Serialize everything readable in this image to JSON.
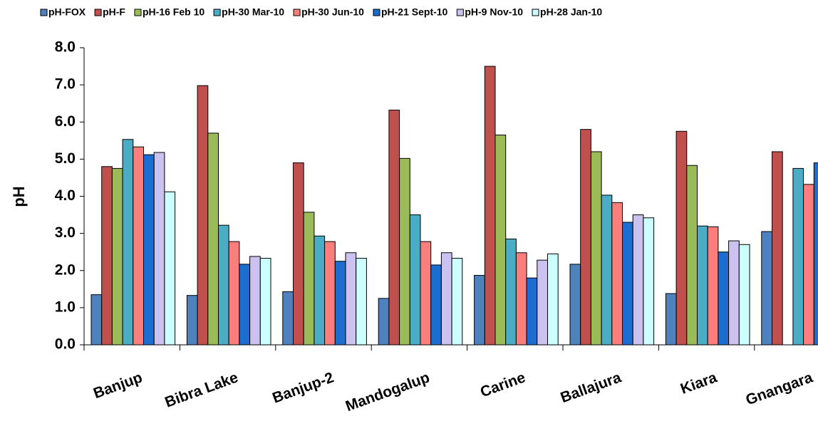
{
  "chart_data": {
    "type": "bar",
    "y_label": "pH",
    "categories": [
      "Banjup",
      "Bibra Lake",
      "Banjup-2",
      "Mandogalup",
      "Carine",
      "Ballajura",
      "Kiara",
      "Gnangara"
    ],
    "series": [
      {
        "name": "pH-FOX",
        "color": "#4f81bd",
        "values": [
          1.35,
          1.33,
          1.43,
          1.25,
          1.87,
          2.17,
          1.38,
          3.05
        ]
      },
      {
        "name": "pH-F",
        "color": "#c0504d",
        "values": [
          4.8,
          6.98,
          4.9,
          6.32,
          7.5,
          5.8,
          5.75,
          5.2
        ]
      },
      {
        "name": "pH-16 Feb 10",
        "color": "#9bbb59",
        "values": [
          4.75,
          5.7,
          3.57,
          5.02,
          5.65,
          5.2,
          4.83,
          null
        ]
      },
      {
        "name": "pH-30 Mar-10",
        "color": "#4bacc6",
        "values": [
          5.53,
          3.22,
          2.93,
          3.5,
          2.85,
          4.03,
          3.2,
          4.75
        ]
      },
      {
        "name": "pH-30 Jun-10",
        "color": "#fa7f7c",
        "values": [
          5.33,
          2.78,
          2.78,
          2.78,
          2.48,
          3.83,
          3.18,
          4.32
        ]
      },
      {
        "name": "pH-21 Sept-10",
        "color": "#1d6cd0",
        "values": [
          5.12,
          2.17,
          2.25,
          2.15,
          1.8,
          3.3,
          2.5,
          4.9
        ]
      },
      {
        "name": "pH-9 Nov-10",
        "color": "#ccc2f0",
        "values": [
          5.18,
          2.38,
          2.48,
          2.48,
          2.28,
          3.5,
          2.8,
          null
        ]
      },
      {
        "name": "pH-28 Jan-10",
        "color": "#cdfefe",
        "values": [
          4.12,
          2.33,
          2.33,
          2.33,
          2.45,
          3.42,
          2.7,
          null
        ]
      }
    ],
    "ylim": [
      0,
      8
    ],
    "yticks": [
      {
        "value": 0,
        "label": "0.0"
      },
      {
        "value": 1,
        "label": "1.0"
      },
      {
        "value": 2,
        "label": "2.0"
      },
      {
        "value": 3,
        "label": "3.0"
      },
      {
        "value": 4,
        "label": "4.0"
      },
      {
        "value": 5,
        "label": "5.0"
      },
      {
        "value": 6,
        "label": "6.0"
      },
      {
        "value": 7,
        "label": "7.0"
      },
      {
        "value": 8,
        "label": "8.0"
      }
    ],
    "grid": false
  }
}
